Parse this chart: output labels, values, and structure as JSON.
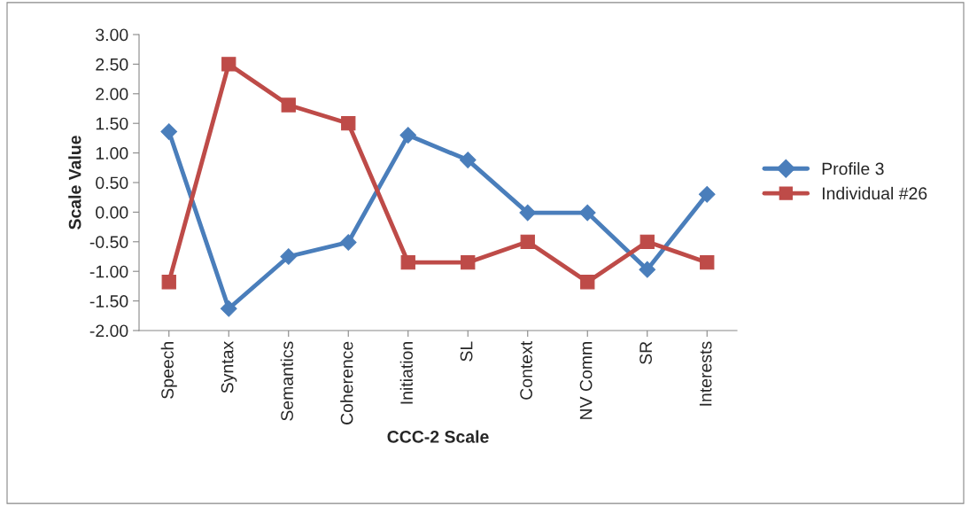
{
  "chart_data": {
    "type": "line",
    "xlabel": "CCC-2 Scale",
    "ylabel": "Scale Value",
    "categories": [
      "Speech",
      "Syntax",
      "Semantics",
      "Coherence",
      "Initiation",
      "SL",
      "Context",
      "NV Comm",
      "SR",
      "Interests"
    ],
    "series": [
      {
        "name": "Profile 3",
        "color": "#4a7ebb",
        "marker": "diamond",
        "values": [
          1.36,
          -1.63,
          -0.75,
          -0.51,
          1.3,
          0.88,
          -0.01,
          -0.01,
          -0.97,
          0.3
        ]
      },
      {
        "name": "Individual #26",
        "color": "#be4b48",
        "marker": "square",
        "values": [
          -1.18,
          2.5,
          1.81,
          1.5,
          -0.85,
          -0.85,
          -0.5,
          -1.18,
          -0.5,
          -0.85
        ]
      }
    ],
    "ylim": [
      -2.0,
      3.0
    ],
    "yticks": [
      {
        "value": -2.0,
        "label": "-2.00"
      },
      {
        "value": -1.5,
        "label": "-1.50"
      },
      {
        "value": -1.0,
        "label": "-1.00"
      },
      {
        "value": -0.5,
        "label": "-0.50"
      },
      {
        "value": 0.0,
        "label": "0.00"
      },
      {
        "value": 0.5,
        "label": "0.50"
      },
      {
        "value": 1.0,
        "label": "1.00"
      },
      {
        "value": 1.5,
        "label": "1.50"
      },
      {
        "value": 2.0,
        "label": "2.00"
      },
      {
        "value": 2.5,
        "label": "2.50"
      },
      {
        "value": 3.0,
        "label": "3.00"
      }
    ],
    "grid": false,
    "legend": "right",
    "line_style": "solid"
  }
}
